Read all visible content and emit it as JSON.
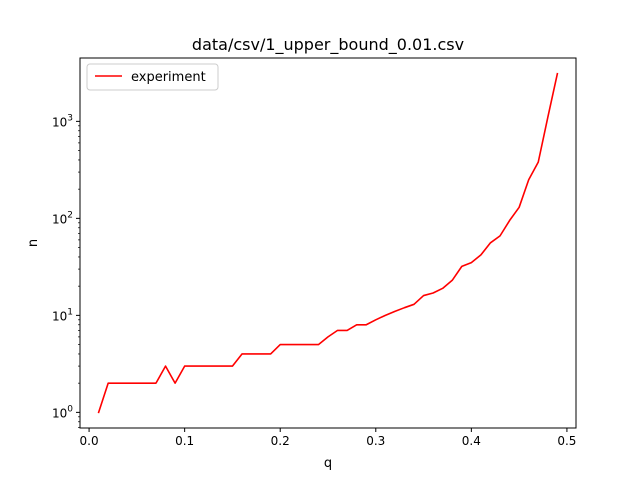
{
  "chart_data": {
    "type": "line",
    "title": "data/csv/1_upper_bound_0.01.csv",
    "xlabel": "q",
    "ylabel": "n",
    "xlim": [
      -0.0095,
      0.5095
    ],
    "ylim": [
      0.69,
      4500
    ],
    "yscale": "log",
    "x_ticks": [
      {
        "value": 0.0,
        "label": "0.0"
      },
      {
        "value": 0.1,
        "label": "0.1"
      },
      {
        "value": 0.2,
        "label": "0.2"
      },
      {
        "value": 0.3,
        "label": "0.3"
      },
      {
        "value": 0.4,
        "label": "0.4"
      },
      {
        "value": 0.5,
        "label": "0.5"
      }
    ],
    "y_ticks": [
      {
        "value": 1,
        "base": "10",
        "exp": "0"
      },
      {
        "value": 10,
        "base": "10",
        "exp": "1"
      },
      {
        "value": 100,
        "base": "10",
        "exp": "2"
      },
      {
        "value": 1000,
        "base": "10",
        "exp": "3"
      }
    ],
    "grid": false,
    "legend": {
      "location": "upper left"
    },
    "series": [
      {
        "name": "experiment",
        "color": "#ff0000",
        "x": [
          0.01,
          0.02,
          0.03,
          0.04,
          0.05,
          0.06,
          0.07,
          0.08,
          0.09,
          0.1,
          0.11,
          0.12,
          0.13,
          0.14,
          0.15,
          0.16,
          0.17,
          0.18,
          0.19,
          0.2,
          0.21,
          0.22,
          0.23,
          0.24,
          0.25,
          0.26,
          0.27,
          0.28,
          0.29,
          0.3,
          0.31,
          0.32,
          0.33,
          0.34,
          0.35,
          0.36,
          0.37,
          0.38,
          0.39,
          0.4,
          0.41,
          0.42,
          0.43,
          0.44,
          0.45,
          0.46,
          0.47,
          0.48,
          0.49
        ],
        "y": [
          1,
          2,
          2,
          2,
          2,
          2,
          2,
          3,
          2,
          3,
          3,
          3,
          3,
          3,
          3,
          4,
          4,
          4,
          4,
          5,
          5,
          5,
          5,
          5,
          6,
          7,
          7,
          8,
          8,
          9,
          10,
          11,
          12,
          13,
          16,
          17,
          19,
          23,
          32,
          35,
          42,
          56,
          66,
          95,
          130,
          250,
          380,
          1100,
          3100
        ]
      }
    ]
  }
}
